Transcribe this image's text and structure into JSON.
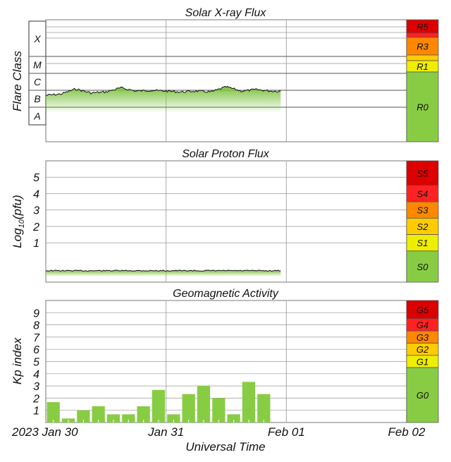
{
  "chart_data": [
    {
      "type": "area",
      "title": "Solar X-ray Flux",
      "ylabel": "Flare Class",
      "class_labels": [
        "X",
        "M",
        "C",
        "B",
        "A"
      ],
      "scale_labels": [
        "R5",
        "R3",
        "R1",
        "R0"
      ],
      "x": [
        "2023-01-30T00",
        "2023-01-30T03",
        "2023-01-30T06",
        "2023-01-30T09",
        "2023-01-30T12",
        "2023-01-30T15",
        "2023-01-30T18",
        "2023-01-30T21",
        "2023-01-31T00",
        "2023-01-31T03",
        "2023-01-31T06",
        "2023-01-31T09",
        "2023-01-31T12",
        "2023-01-31T15",
        "2023-01-31T18",
        "2023-01-31T21"
      ],
      "values": [
        "B5",
        "B6",
        "C1.2",
        "B7",
        "B8",
        "C1.4",
        "B9",
        "C1.0",
        "B9",
        "B8",
        "B9",
        "B8",
        "C1.6",
        "B9",
        "C1.1",
        "B9"
      ],
      "grid": true
    },
    {
      "type": "area",
      "title": "Solar Proton Flux",
      "ylabel": "Log10(pfu)",
      "ylabel_main": "Log",
      "ylabel_sub": "10",
      "ylabel_rest": "(pfu)",
      "yticks": [
        "5",
        "4",
        "3",
        "2",
        "1"
      ],
      "scale_labels": [
        "S5",
        "S4",
        "S3",
        "S2",
        "S1",
        "S0"
      ],
      "x": [
        "2023-01-30T00",
        "2023-01-31T00",
        "2023-01-31T21"
      ],
      "values": [
        -0.7,
        -0.7,
        -0.7
      ],
      "ylim": [
        -1.4,
        6
      ],
      "grid": true
    },
    {
      "type": "bar",
      "title": "Geomagnetic Activity",
      "ylabel": "Kp index",
      "yticks": [
        "9",
        "8",
        "7",
        "6",
        "5",
        "4",
        "3",
        "2",
        "1"
      ],
      "scale_labels": [
        "G5",
        "G4",
        "G3",
        "G2",
        "G1",
        "G0"
      ],
      "x": [
        "2023-01-30T00",
        "2023-01-30T03",
        "2023-01-30T06",
        "2023-01-30T09",
        "2023-01-30T12",
        "2023-01-30T15",
        "2023-01-30T18",
        "2023-01-30T21",
        "2023-01-31T00",
        "2023-01-31T03",
        "2023-01-31T06",
        "2023-01-31T09",
        "2023-01-31T12",
        "2023-01-31T15",
        "2023-01-31T18"
      ],
      "values": [
        1.67,
        0.33,
        1.0,
        1.33,
        0.67,
        0.67,
        1.33,
        2.67,
        0.67,
        2.33,
        3.0,
        2.0,
        0.67,
        3.33,
        2.33
      ],
      "ylim": [
        0,
        10
      ],
      "grid": true
    }
  ],
  "x_axis": {
    "tick_labels": [
      "2023 Jan 30",
      "Jan 31",
      "Feb 01",
      "Feb 02"
    ],
    "label": "Universal Time"
  },
  "colors": {
    "scale_5": "#dd0000",
    "scale_4": "#ff2222",
    "scale_3": "#ff8800",
    "scale_2": "#ffcc00",
    "scale_1": "#eeee00",
    "scale_0": "#88cc44",
    "flux_fill": "#88cc44"
  }
}
